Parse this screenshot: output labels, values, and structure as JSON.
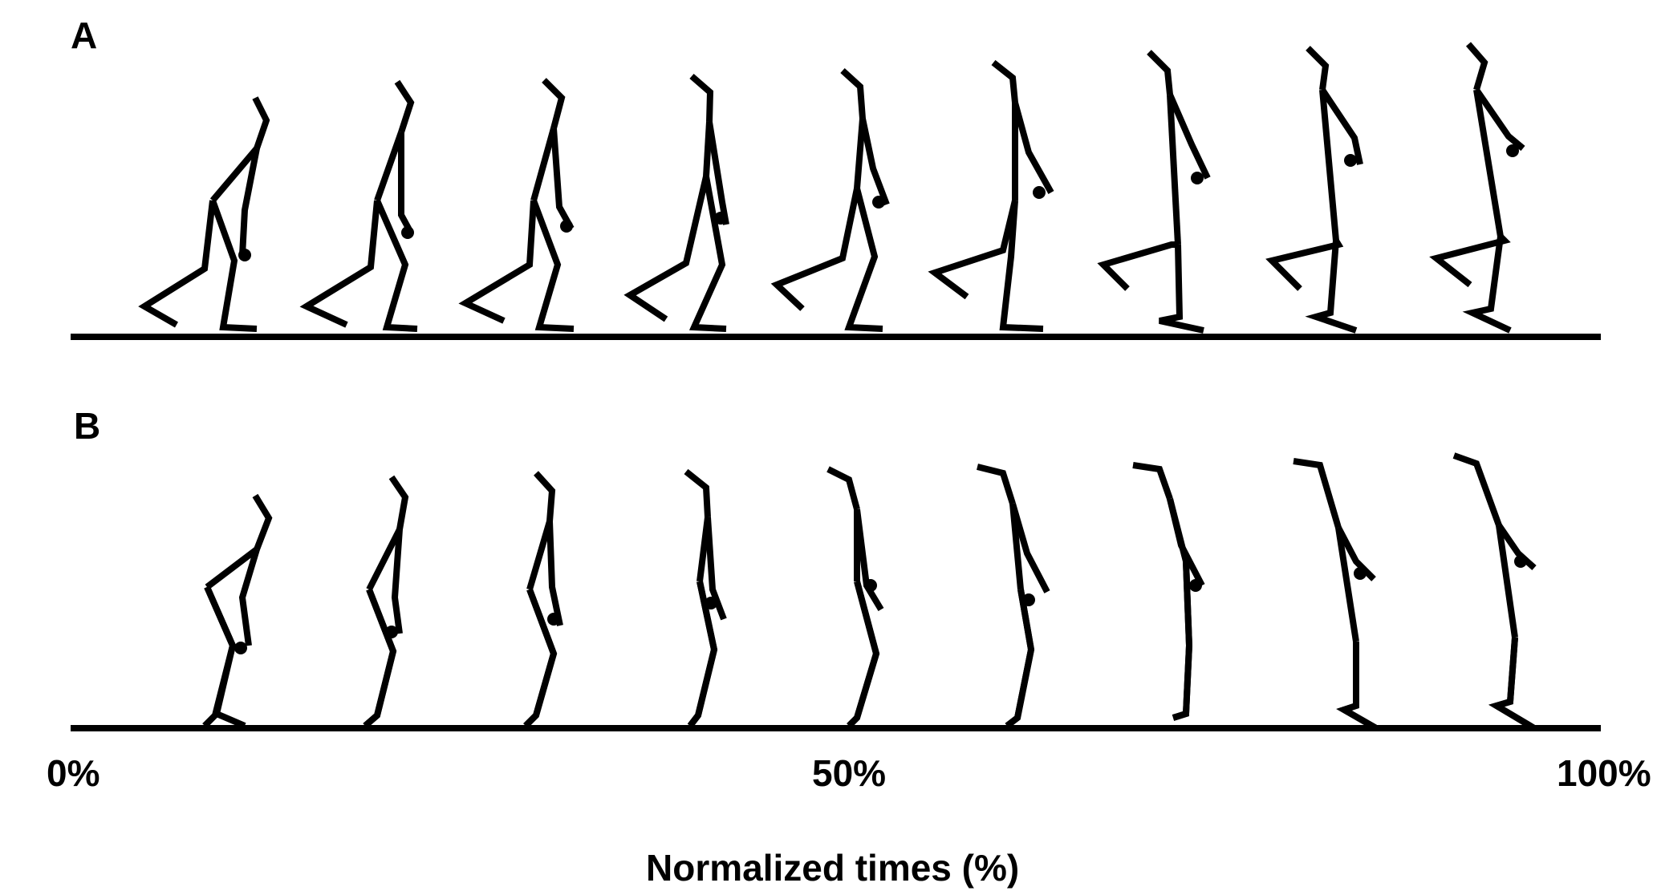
{
  "panels": [
    {
      "label": "A",
      "frame_count": 9
    },
    {
      "label": "B",
      "frame_count": 9
    }
  ],
  "x_axis": {
    "ticks": [
      "0%",
      "50%",
      "100%"
    ],
    "title": "Normalized times (%)"
  },
  "colors": {
    "ink": "#000000",
    "background": "#ffffff"
  }
}
